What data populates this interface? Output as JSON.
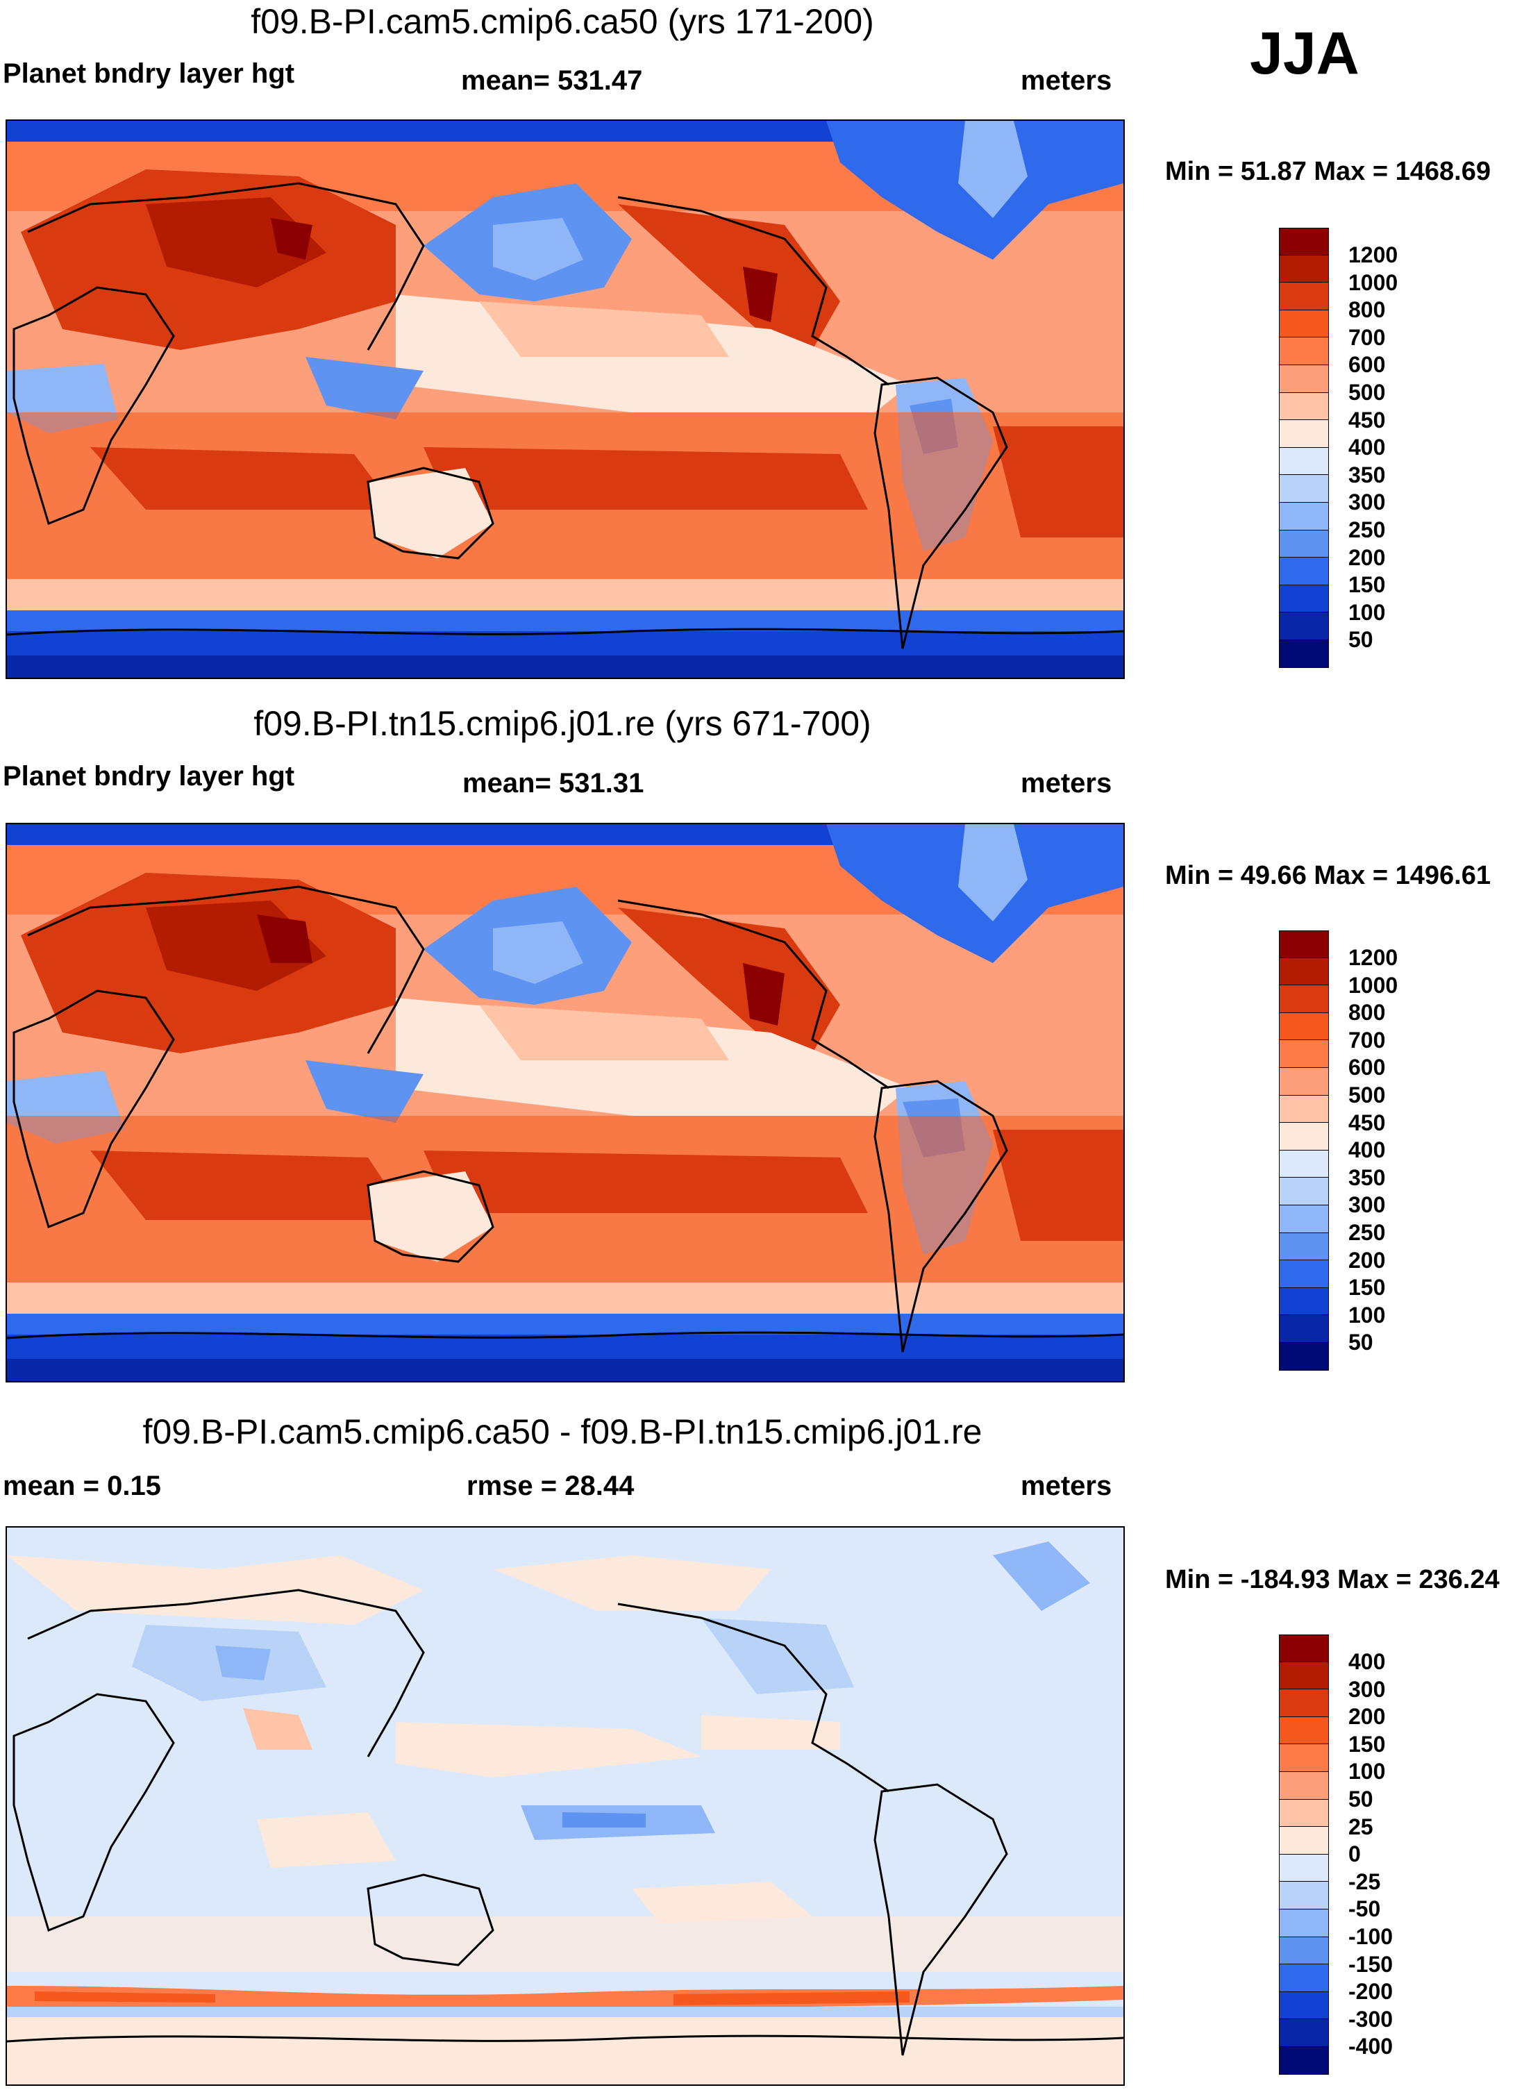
{
  "season": "JJA",
  "panels": [
    {
      "title": "f09.B-PI.cam5.cmip6.ca50 (yrs 171-200)",
      "left_label": "Planet bndry layer hgt",
      "center_label": "mean= 531.47",
      "right_label": "meters",
      "minmax": "Min =  51.87 Max = 1468.69",
      "colorbar": {
        "labels": [
          "1200",
          "1000",
          "800",
          "700",
          "600",
          "500",
          "450",
          "400",
          "350",
          "300",
          "250",
          "200",
          "150",
          "100",
          "50"
        ],
        "colors": [
          "#8b0000",
          "#b31c00",
          "#d93a10",
          "#f4581c",
          "#fc7b48",
          "#fc9f7a",
          "#fdc4a8",
          "#fde8dc",
          "#dce9fa",
          "#b8d2f8",
          "#8fb6f6",
          "#5f93f2",
          "#2f69ec",
          "#1142d4",
          "#0727a8",
          "#020a78"
        ]
      }
    },
    {
      "title": "f09.B-PI.tn15.cmip6.j01.re (yrs 671-700)",
      "left_label": "Planet bndry layer hgt",
      "center_label": "mean= 531.31",
      "right_label": "meters",
      "minmax": "Min =  49.66 Max = 1496.61",
      "colorbar": {
        "labels": [
          "1200",
          "1000",
          "800",
          "700",
          "600",
          "500",
          "450",
          "400",
          "350",
          "300",
          "250",
          "200",
          "150",
          "100",
          "50"
        ],
        "colors": [
          "#8b0000",
          "#b31c00",
          "#d93a10",
          "#f4581c",
          "#fc7b48",
          "#fc9f7a",
          "#fdc4a8",
          "#fde8dc",
          "#dce9fa",
          "#b8d2f8",
          "#8fb6f6",
          "#5f93f2",
          "#2f69ec",
          "#1142d4",
          "#0727a8",
          "#020a78"
        ]
      }
    },
    {
      "title": "f09.B-PI.cam5.cmip6.ca50 - f09.B-PI.tn15.cmip6.j01.re",
      "left_label": "mean =   0.15",
      "center_label": "rmse =  28.44",
      "right_label": "meters",
      "minmax": "Min = -184.93 Max = 236.24",
      "colorbar": {
        "labels": [
          "400",
          "300",
          "200",
          "150",
          "100",
          "50",
          "25",
          "0",
          "-25",
          "-50",
          "-100",
          "-150",
          "-200",
          "-300",
          "-400"
        ],
        "colors": [
          "#8b0000",
          "#b31c00",
          "#d93a10",
          "#f4581c",
          "#fc7b48",
          "#fc9f7a",
          "#fdc4a8",
          "#fde8dc",
          "#dce9fa",
          "#b8d2f8",
          "#8fb6f6",
          "#5f93f2",
          "#2f69ec",
          "#1142d4",
          "#0727a8",
          "#020a78"
        ]
      }
    }
  ]
}
